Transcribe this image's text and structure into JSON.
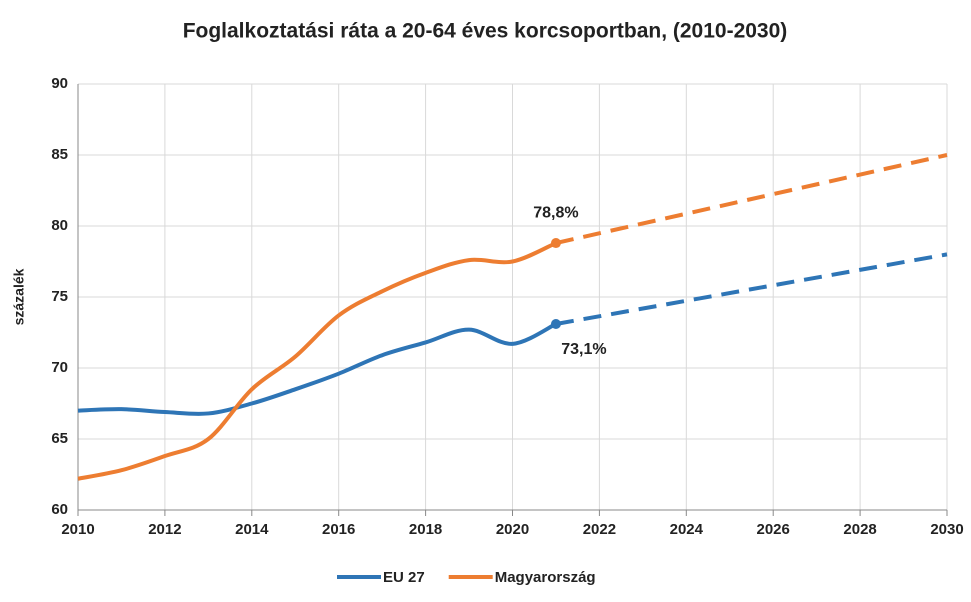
{
  "chart_data": {
    "type": "line",
    "title": "Foglalkoztatási ráta a 20-64 éves korcsoportban, (2010-2030)",
    "y_label": "százalék",
    "x": [
      2010,
      2011,
      2012,
      2013,
      2014,
      2015,
      2016,
      2017,
      2018,
      2019,
      2020,
      2021
    ],
    "series": [
      {
        "name": "EU 27",
        "color": "#2e75b6",
        "values": [
          67.0,
          67.1,
          66.9,
          66.8,
          67.5,
          68.5,
          69.6,
          70.9,
          71.8,
          72.7,
          71.7,
          73.1
        ],
        "value_labels": [
          null,
          null,
          null,
          null,
          null,
          null,
          null,
          null,
          null,
          null,
          null,
          "73,1%"
        ],
        "projection": {
          "x": [
            2021,
            2030
          ],
          "values": [
            73.1,
            78.0
          ]
        }
      },
      {
        "name": "Magyarország",
        "color": "#ed7d31",
        "values": [
          62.2,
          62.8,
          63.8,
          65.0,
          68.5,
          70.8,
          73.7,
          75.4,
          76.7,
          77.6,
          77.5,
          78.8
        ],
        "value_labels": [
          null,
          null,
          null,
          null,
          null,
          null,
          null,
          null,
          null,
          null,
          null,
          "78,8%"
        ],
        "projection": {
          "x": [
            2021,
            2030
          ],
          "values": [
            78.8,
            85.0
          ]
        }
      }
    ],
    "xlim": [
      2010,
      2030
    ],
    "xticks": [
      2010,
      2012,
      2014,
      2016,
      2018,
      2020,
      2022,
      2024,
      2026,
      2028,
      2030
    ],
    "ylim": [
      60,
      90
    ],
    "yticks": [
      60,
      65,
      70,
      75,
      80,
      85,
      90
    ],
    "grid": true,
    "legend": "bottom"
  }
}
